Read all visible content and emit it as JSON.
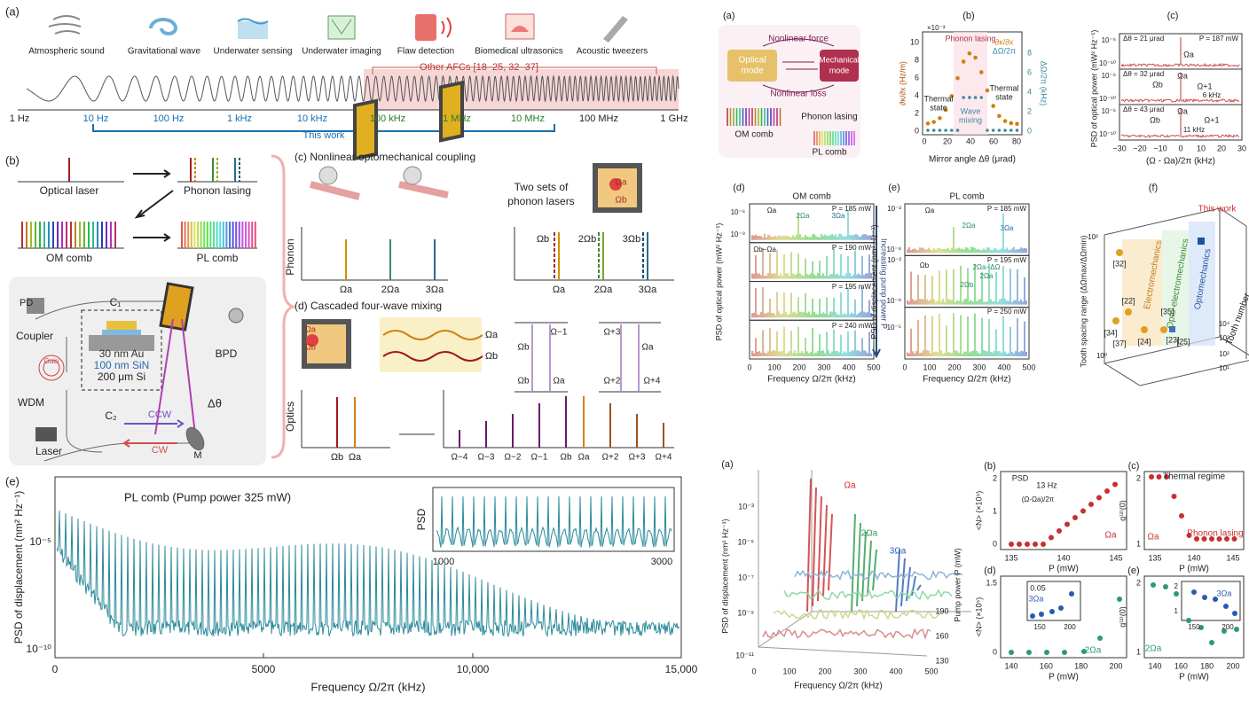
{
  "left": {
    "a": {
      "label": "(a)",
      "apps": [
        "Atmospheric sound",
        "Gravitational wave",
        "Underwater sensing",
        "Underwater imaging",
        "Flaw detection",
        "Biomedical ultrasonics",
        "Acoustic tweezers"
      ],
      "other": "Other AFCs [18–25, 32–37]",
      "scale": [
        "1 Hz",
        "10 Hz",
        "100 Hz",
        "1 kHz",
        "10 kHz",
        "100 kHz",
        "1 MHz",
        "10 MHz",
        "100 MHz",
        "1 GHz"
      ],
      "this_work": "This work"
    },
    "b": {
      "label": "(b)",
      "optical_laser": "Optical laser",
      "phonon_lasing": "Phonon lasing",
      "om_comb": "OM comb",
      "pl_comb": "PL comb",
      "pd": "PD",
      "c1": "C₁",
      "coupler": "Coupler",
      "gain": "Gain",
      "au": "30 nm Au",
      "sin": "100 nm SiN",
      "si": "200 μm Si",
      "bpd": "BPD",
      "wdm": "WDM",
      "laser": "Laser",
      "c2": "C₂",
      "ccw": "CCW",
      "cw": "CW",
      "m": "M",
      "dtheta": "Δθ"
    },
    "c": {
      "label": "(c) Nonlinear optomechanical coupling",
      "two_sets": [
        "Two sets of",
        "phonon lasers"
      ],
      "ylabel": "Phonon",
      "ticks1": [
        "Ωa",
        "2Ωa",
        "3Ωa"
      ],
      "peaks2": [
        "Ωb",
        "2Ωb",
        "3Ωb"
      ],
      "ticks2": [
        "Ωa",
        "2Ωa",
        "3Ωa"
      ],
      "spot": [
        "Ωa",
        "Ωb"
      ]
    },
    "d": {
      "label": "(d) Cascaded four-wave mixing",
      "spot": [
        "Ωa",
        "Ωb"
      ],
      "waves": [
        "Ωa",
        "Ωb"
      ],
      "ylabel": "Optics",
      "ticks1": [
        "Ωb",
        "Ωa"
      ],
      "ticks2": [
        "Ω−4",
        "Ω−3",
        "Ω−2",
        "Ω−1",
        "Ωb",
        "Ωa",
        "Ω+2",
        "Ω+3",
        "Ω+4"
      ],
      "levels": [
        "Ωb",
        "Ω−1",
        "Ωb",
        "Ωa",
        "Ω+3",
        "Ωa",
        "Ω+2",
        "Ω+4"
      ]
    },
    "e": {
      "label": "(e)",
      "title": "PL comb (Pump power 325 mW)",
      "ylabel": "PSD of displacement (nm² Hz⁻¹)",
      "xlabel": "Frequency Ω/2π (kHz)",
      "xticks": [
        "0",
        "5000",
        "10,000",
        "15,000"
      ],
      "yticks": [
        "10⁻⁵",
        "10⁻¹⁰"
      ],
      "inset_ylabel": "PSD",
      "inset_xticks": [
        "1000",
        "3000"
      ]
    }
  },
  "right": {
    "a": {
      "label": "(a)",
      "force": "Nonlinear force",
      "optical": [
        "Optical",
        "mode"
      ],
      "mechanical": [
        "Mechanical",
        "mode"
      ],
      "loss": "Nonlinear loss",
      "om_comb": "OM comb",
      "phonon_lasing": "Phonon lasing",
      "pl_comb": "PL comb"
    },
    "b": {
      "label": "(b)",
      "exp": "×10⁻³",
      "lasing": "Phonon lasing",
      "legend": [
        "∂κ/∂x",
        "ΔΩ/2π"
      ],
      "thermal": [
        "Thermal",
        "state"
      ],
      "wave": [
        "Wave",
        "mixing"
      ],
      "ylabel": "∂κ/∂x (Hz/m)",
      "y2label": "ΔΩ/2π (kHz)",
      "xlabel": "Mirror angle Δθ (μrad)",
      "xticks": [
        "0",
        "20",
        "40",
        "60",
        "80"
      ],
      "yticks": [
        "0",
        "2",
        "4",
        "6",
        "8",
        "10"
      ],
      "y2ticks": [
        "0",
        "2",
        "4",
        "6",
        "8"
      ]
    },
    "c": {
      "label": "(c)",
      "rows": [
        [
          "Δθ = 21 μrad",
          "P = 187 mW",
          "Ωa"
        ],
        [
          "Δθ = 32 μrad",
          "Ωa",
          "Ωb",
          "Ω+1",
          "6 kHz"
        ],
        [
          "Δθ = 43 μrad",
          "Ωb",
          "Ωa",
          "Ω+1",
          "11 kHz"
        ]
      ],
      "ylabel": "PSD of optical power (mW² Hz⁻¹)",
      "xlabel": "(Ω - Ωa)/2π (kHz)",
      "xticks": [
        "−30",
        "−20",
        "−10",
        "0",
        "10",
        "20",
        "30"
      ],
      "yticks": [
        "10⁻⁶",
        "10⁻¹⁰"
      ]
    },
    "d": {
      "label": "(d)",
      "title": "OM comb",
      "rows": [
        [
          "P = 185 mW",
          "Ωa",
          "2Ωa",
          "3Ωa"
        ],
        [
          "P = 190 mW",
          "Ωb−Ωa"
        ],
        [
          "P = 195 mW"
        ],
        [
          "P = 240 mW"
        ]
      ],
      "arrow": "Increasing pump power P",
      "ylabel": "PSD of optical power (mW² Hz⁻¹)",
      "xlabel": "Frequency Ω/2π (kHz)",
      "xticks": [
        "0",
        "100",
        "200",
        "300",
        "400",
        "500"
      ],
      "yticks": [
        "10⁻⁶",
        "10⁻⁹"
      ]
    },
    "e": {
      "label": "(e)",
      "title": "PL comb",
      "rows": [
        [
          "P = 185 mW",
          "Ωa",
          "2Ωa",
          "3Ωa"
        ],
        [
          "P = 195 mW",
          "Ωb",
          "2Ωa−ΔΩ",
          "2Ωa",
          "2Ωb"
        ],
        [
          "P = 250 mW"
        ]
      ],
      "ylabel": "PSD of displacement (nm² Hz⁻¹)",
      "xlabel": "Frequency Ω/2π (kHz)",
      "xticks": [
        "0",
        "100",
        "200",
        "300",
        "400",
        "500"
      ],
      "yticks": [
        "10⁻²",
        "10⁻⁸",
        "10⁻²",
        "10⁻⁸",
        "10⁻⁵"
      ]
    },
    "f": {
      "label": "(f)",
      "this_work": "This work",
      "fields": [
        "Electromechanics",
        "Opto-electromechanics",
        "Optomechanics"
      ],
      "refs": [
        "[32]",
        "[22]",
        "[35]",
        "[34]",
        "[37]",
        "[24]",
        "[23]",
        "[25]"
      ],
      "ylabel": "Tooth spacing range (ΔΩmax/ΔΩmin)",
      "zlabel": "Tooth number",
      "ticks": [
        "10²",
        "10⁰",
        "10¹",
        "10²",
        "10³",
        "10⁴"
      ]
    },
    "ba": {
      "label": "(a)",
      "peaks": [
        "Ωa",
        "2Ωa",
        "3Ωa"
      ],
      "ylabel": "PSD of displacement (nm² Hz⁻¹)",
      "xlabel": "Frequency Ω/2π (kHz)",
      "xticks": [
        "0",
        "100",
        "200",
        "300",
        "400",
        "500"
      ],
      "yticks": [
        "10⁻³",
        "10⁻⁵",
        "10⁻⁷",
        "10⁻⁹",
        "10⁻¹¹"
      ],
      "zlabel": "Pump power P (mW)",
      "zticks": [
        "130",
        "160",
        "190"
      ]
    },
    "bb": {
      "label": "(b)",
      "ylabel": "<N> (×10⁵)",
      "xlabel": "P (mW)",
      "xticks": [
        "135",
        "140",
        "145"
      ],
      "yticks": [
        "0",
        "1",
        "2"
      ],
      "inset": [
        "PSD",
        "13 Hz",
        "(Ω-Ωa)/2π"
      ],
      "mode": "Ωa"
    },
    "bc": {
      "label": "(c)",
      "ylabel": "g⁽²⁾(0)",
      "xlabel": "P (mW)",
      "xticks": [
        "135",
        "140",
        "145"
      ],
      "yticks": [
        "1",
        "2"
      ],
      "thermal": "Thermal regime",
      "lasing": "Phonon lasing",
      "mode": "Ωa"
    },
    "bd": {
      "label": "(d)",
      "ylabel": "<N> (×10⁵)",
      "xlabel": "P (mW)",
      "xticks": [
        "140",
        "160",
        "180",
        "200"
      ],
      "yticks": [
        "0",
        "1.5"
      ],
      "inset_ytick": "0.05",
      "inset_mode": "3Ωa",
      "inset_xticks": [
        "150",
        "200"
      ],
      "mode": "2Ωa"
    },
    "be": {
      "label": "(e)",
      "ylabel": "g⁽²⁾(0)",
      "xlabel": "P (mW)",
      "xticks": [
        "140",
        "160",
        "180",
        "200"
      ],
      "yticks": [
        "1",
        "2"
      ],
      "inset_yticks": [
        "1",
        "2"
      ],
      "inset_mode": "3Ωa",
      "inset_xticks": [
        "150",
        "200"
      ],
      "mode": "2Ωa"
    }
  }
}
